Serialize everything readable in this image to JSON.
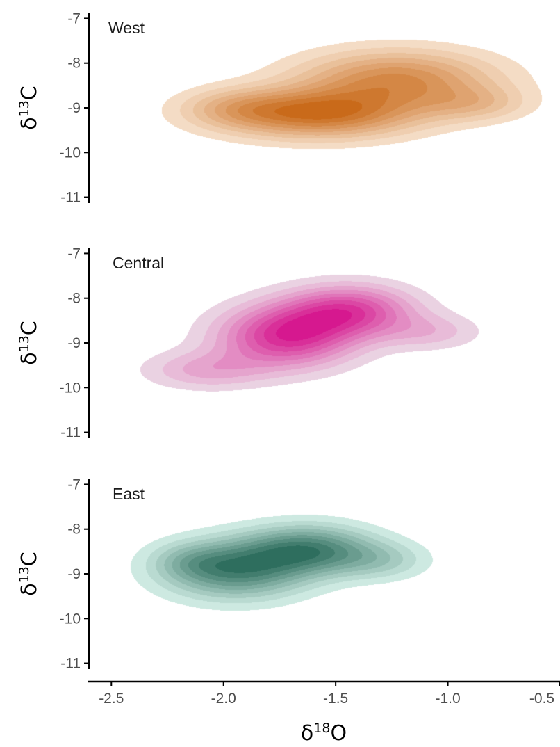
{
  "chart_data": {
    "type": "density-contour",
    "xlabel": {
      "main": "δ",
      "sup": "18",
      "tail": "O"
    },
    "ylabel": {
      "main": "δ",
      "sup": "13",
      "tail": "C"
    },
    "xlim": [
      -2.6,
      -0.5
    ],
    "ylim": [
      -11.1,
      -6.9
    ],
    "xticks": [
      -2.5,
      -2.0,
      -1.5,
      -1.0,
      -0.5
    ],
    "xtick_labels": [
      "-2.5",
      "-2.0",
      "-1.5",
      "-1.0",
      "-0.5"
    ],
    "yticks": [
      -7,
      -8,
      -9,
      -10,
      -11
    ],
    "ytick_labels": [
      "-7",
      "-8",
      "-9",
      "-10",
      "-11"
    ],
    "grid": false,
    "legend": "none",
    "levels": 9,
    "panels": [
      {
        "name": "West",
        "label": "West",
        "light_color": "#f4dcc5",
        "dark_color": "#c96a1a",
        "components": [
          {
            "cx": -1.58,
            "cy": -9.12,
            "sx": 0.3,
            "sy": 0.38,
            "w": 1.0
          },
          {
            "cx": -1.23,
            "cy": -8.35,
            "sx": 0.3,
            "sy": 0.45,
            "w": 0.78
          },
          {
            "cx": -0.88,
            "cy": -8.9,
            "sx": 0.17,
            "sy": 0.28,
            "w": 0.32
          },
          {
            "cx": -1.95,
            "cy": -9.0,
            "sx": 0.17,
            "sy": 0.3,
            "w": 0.3
          }
        ],
        "threshold": 0.1
      },
      {
        "name": "Central",
        "label": "Central",
        "light_color": "#ead2e2",
        "dark_color": "#d6188f",
        "components": [
          {
            "cx": -1.72,
            "cy": -8.85,
            "sx": 0.21,
            "sy": 0.48,
            "w": 1.0
          },
          {
            "cx": -1.44,
            "cy": -8.27,
            "sx": 0.2,
            "sy": 0.4,
            "w": 0.85
          },
          {
            "cx": -2.08,
            "cy": -9.6,
            "sx": 0.19,
            "sy": 0.3,
            "w": 0.38
          },
          {
            "cx": -1.08,
            "cy": -8.75,
            "sx": 0.16,
            "sy": 0.28,
            "w": 0.28
          }
        ],
        "threshold": 0.1
      },
      {
        "name": "East",
        "label": "East",
        "light_color": "#cde9e1",
        "dark_color": "#2e6e5e",
        "components": [
          {
            "cx": -1.95,
            "cy": -8.9,
            "sx": 0.22,
            "sy": 0.45,
            "w": 1.0
          },
          {
            "cx": -1.62,
            "cy": -8.45,
            "sx": 0.2,
            "sy": 0.38,
            "w": 0.95
          },
          {
            "cx": -1.3,
            "cy": -8.7,
            "sx": 0.15,
            "sy": 0.3,
            "w": 0.35
          },
          {
            "cx": -2.15,
            "cy": -8.7,
            "sx": 0.12,
            "sy": 0.28,
            "w": 0.25
          }
        ],
        "threshold": 0.1
      }
    ]
  }
}
